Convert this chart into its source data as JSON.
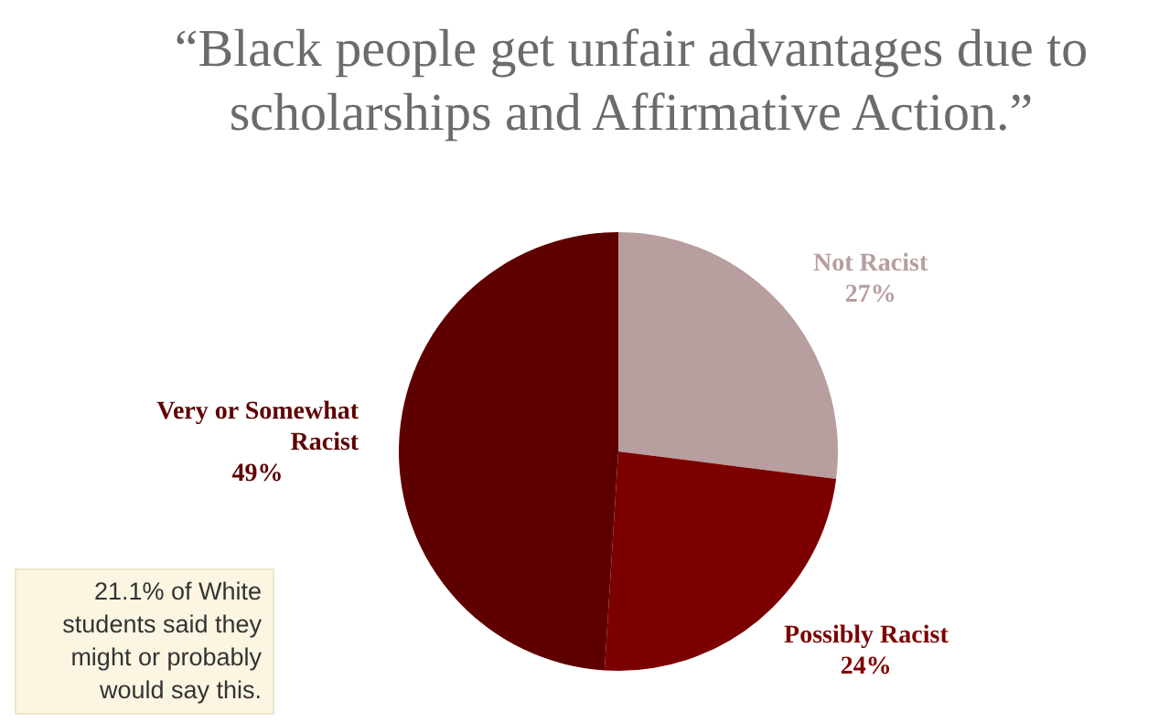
{
  "chart_data": {
    "type": "pie",
    "title": "“Black people get unfair advantages due to scholarships and Affirmative Action.”",
    "categories": [
      "Not Racist",
      "Possibly Racist",
      "Very or Somewhat Racist"
    ],
    "values": [
      27,
      24,
      49
    ],
    "colors": [
      "#b89e9f",
      "#7d0000",
      "#5e0000"
    ],
    "value_labels": [
      "27%",
      "24%",
      "49%"
    ],
    "legend": false,
    "annotations": [
      "21.1% of White students said they might or probably would say this."
    ]
  }
}
